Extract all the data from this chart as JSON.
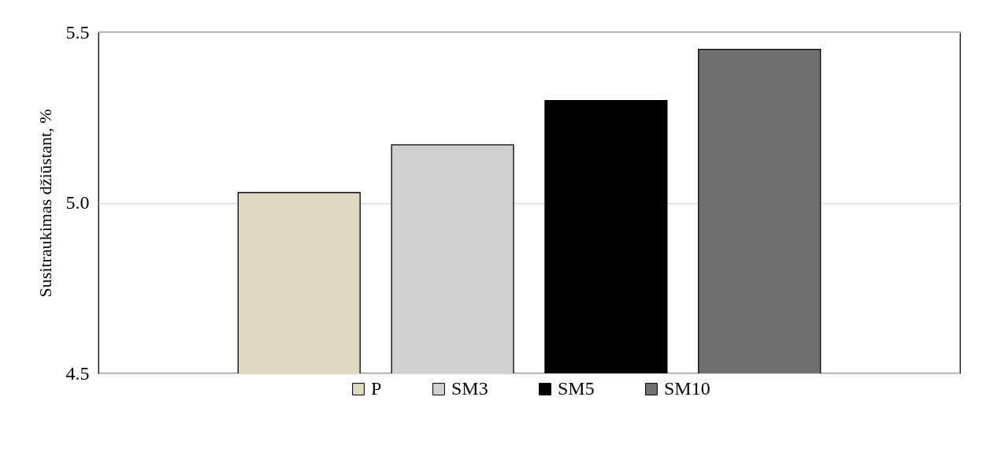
{
  "chart_data": {
    "type": "bar",
    "ylabel": "Susitraukimas džiūstant, %",
    "categories": [
      null,
      null,
      null,
      null
    ],
    "series": [
      {
        "name": "P",
        "color": "#ddd9c3",
        "values": [
          5.03,
          null,
          null,
          null
        ]
      },
      {
        "name": "SM3",
        "color": "#d0d0d0",
        "values": [
          null,
          5.17,
          null,
          null
        ]
      },
      {
        "name": "SM5",
        "color": "#000000",
        "values": [
          null,
          null,
          5.3,
          null
        ]
      },
      {
        "name": "SM10",
        "color": "#707070",
        "values": [
          null,
          null,
          null,
          5.45
        ]
      }
    ],
    "ylim": [
      4.5,
      5.5
    ],
    "yticks": [
      4.5,
      {
        "value": 5,
        "label": "5.0"
      },
      5.5
    ],
    "grid": "y",
    "legend": "bottom",
    "tick_labels": "y"
  }
}
